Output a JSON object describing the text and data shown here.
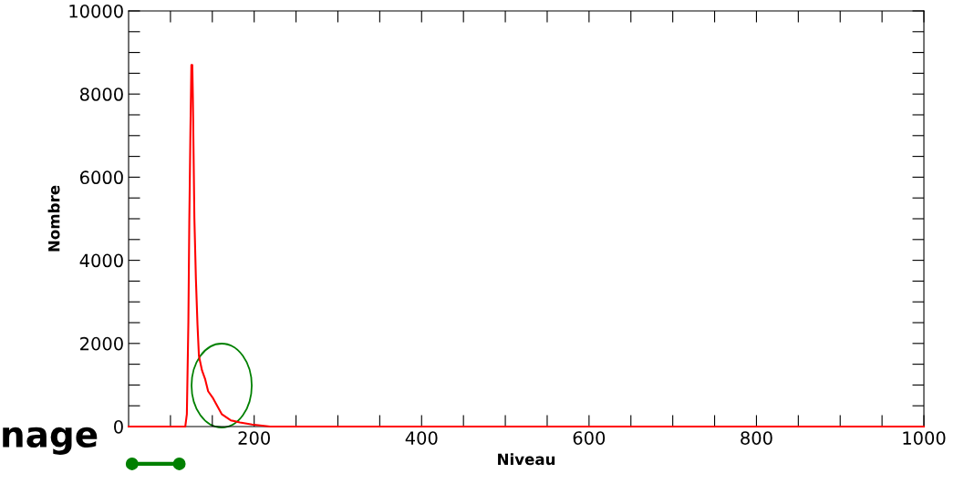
{
  "chart_data": {
    "type": "line",
    "xlabel": "Niveau",
    "ylabel": "Nombre",
    "x": [
      50,
      117.7,
      119.6,
      121.4,
      122.5,
      123.9,
      125,
      126.1,
      126.8,
      128.6,
      130.4,
      132.3,
      134,
      137.7,
      141.3,
      145,
      150.3,
      155.8,
      161.2,
      172,
      183,
      197.5,
      219,
      250,
      300,
      400,
      600,
      800,
      1000
    ],
    "series": [
      {
        "color": "#ff0000",
        "values": [
          0,
          0,
          300,
          2500,
          4900,
          7200,
          8700,
          8700,
          7900,
          5000,
          3550,
          2450,
          1700,
          1350,
          1150,
          850,
          700,
          500,
          300,
          150,
          100,
          50,
          0,
          0,
          0,
          0,
          0,
          0,
          0
        ]
      }
    ],
    "xlim": [
      50,
      1000
    ],
    "xticks": [
      {
        "value": 100,
        "label": null
      },
      {
        "value": 150,
        "label": null
      },
      200,
      {
        "value": 250,
        "label": null
      },
      {
        "value": 300,
        "label": null
      },
      {
        "value": 350,
        "label": null
      },
      400,
      {
        "value": 450,
        "label": null
      },
      {
        "value": 500,
        "label": null
      },
      {
        "value": 550,
        "label": null
      },
      600,
      {
        "value": 650,
        "label": null
      },
      {
        "value": 700,
        "label": null
      },
      {
        "value": 750,
        "label": null
      },
      800,
      {
        "value": 850,
        "label": null
      },
      {
        "value": 900,
        "label": null
      },
      {
        "value": 950,
        "label": null
      },
      1000
    ],
    "ylim": [
      0,
      10000
    ],
    "yticks": [
      0,
      {
        "value": 500,
        "label": null
      },
      {
        "value": 1000,
        "label": null
      },
      {
        "value": 1500,
        "label": null
      },
      2000,
      {
        "value": 2500,
        "label": null
      },
      {
        "value": 3000,
        "label": null
      },
      {
        "value": 3500,
        "label": null
      },
      4000,
      {
        "value": 4500,
        "label": null
      },
      {
        "value": 5000,
        "label": null
      },
      {
        "value": 5500,
        "label": null
      },
      6000,
      {
        "value": 6500,
        "label": null
      },
      {
        "value": 7000,
        "label": null
      },
      {
        "value": 7500,
        "label": null
      },
      8000,
      {
        "value": 8500,
        "label": null
      },
      {
        "value": 9000,
        "label": null
      },
      {
        "value": 9500,
        "label": null
      },
      10000
    ],
    "annotations": [
      "nage"
    ],
    "grid": false,
    "legend": false
  }
}
